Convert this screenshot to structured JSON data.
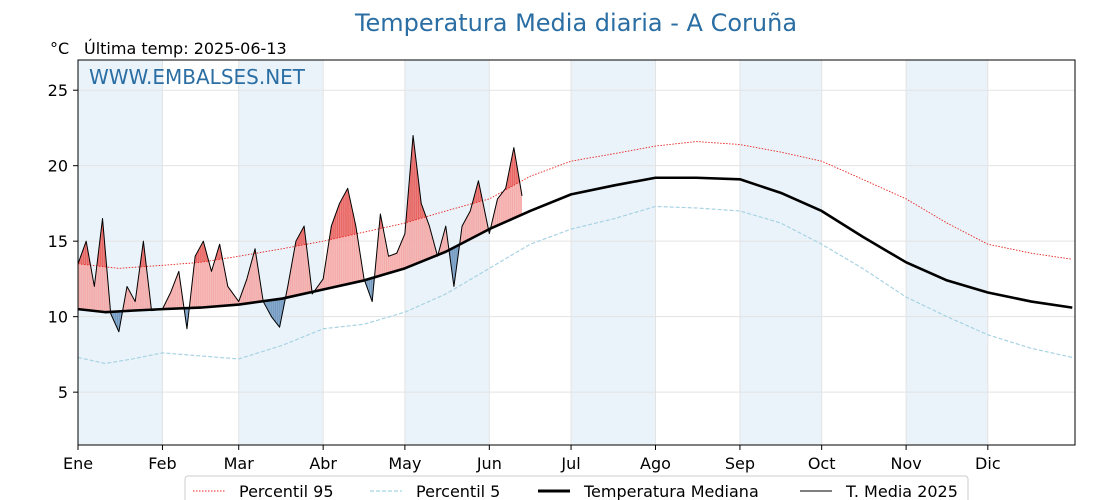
{
  "chart_data": {
    "type": "line",
    "title": "Temperatura Media diaria - A Coruña",
    "unit_label": "°C",
    "subtitle": "Última temp: 2025-06-13",
    "watermark": "WWW.EMBALSES.NET",
    "xlabel": "",
    "ylabel": "",
    "ylim": [
      1.5,
      27
    ],
    "yticks": [
      5,
      10,
      15,
      20,
      25
    ],
    "xlim": [
      0,
      366
    ],
    "month_starts": [
      0,
      31,
      59,
      90,
      120,
      151,
      181,
      212,
      243,
      273,
      304,
      334
    ],
    "month_labels": [
      "Ene",
      "Feb",
      "Mar",
      "Abr",
      "May",
      "Jun",
      "Jul",
      "Ago",
      "Sep",
      "Oct",
      "Nov",
      "Dic"
    ],
    "grid": true,
    "legend_position": "bottom",
    "colors": {
      "p95": "#e8231e",
      "p5": "#a8d3e3",
      "median": "#000000",
      "current": "#000000",
      "above_median_fill": "#f4a9a7",
      "above_p95_fill": "#e8615e",
      "below_median_fill": "#6f97bf",
      "month_band": "#eaf3fa",
      "title": "#2b6ea3"
    },
    "series": [
      {
        "name": "Percentil 95",
        "style": "dotted",
        "x": [
          0,
          15,
          31,
          45,
          59,
          75,
          90,
          105,
          120,
          135,
          151,
          166,
          181,
          197,
          212,
          227,
          243,
          258,
          273,
          288,
          304,
          319,
          334,
          350,
          365
        ],
        "values": [
          13.5,
          13.2,
          13.4,
          13.6,
          14.0,
          14.5,
          15.0,
          15.6,
          16.2,
          17.0,
          17.8,
          19.3,
          20.3,
          20.8,
          21.3,
          21.6,
          21.4,
          20.9,
          20.3,
          19.1,
          17.8,
          16.2,
          14.8,
          14.2,
          13.8
        ]
      },
      {
        "name": "Percentil 5",
        "style": "dashed",
        "x": [
          0,
          10,
          20,
          31,
          45,
          59,
          75,
          90,
          105,
          120,
          135,
          151,
          166,
          181,
          197,
          212,
          227,
          243,
          258,
          273,
          288,
          304,
          319,
          334,
          350,
          365
        ],
        "values": [
          7.3,
          6.9,
          7.2,
          7.6,
          7.4,
          7.2,
          8.1,
          9.2,
          9.5,
          10.3,
          11.5,
          13.2,
          14.8,
          15.8,
          16.5,
          17.3,
          17.2,
          17.0,
          16.2,
          14.8,
          13.2,
          11.3,
          10.0,
          8.8,
          7.9,
          7.3
        ]
      },
      {
        "name": "Temperatura Mediana",
        "style": "solid-thick",
        "x": [
          0,
          10,
          20,
          31,
          45,
          59,
          75,
          90,
          105,
          120,
          135,
          151,
          166,
          181,
          197,
          212,
          227,
          243,
          258,
          273,
          288,
          304,
          319,
          334,
          350,
          365
        ],
        "values": [
          10.5,
          10.3,
          10.4,
          10.5,
          10.6,
          10.8,
          11.2,
          11.8,
          12.4,
          13.2,
          14.3,
          15.8,
          17.0,
          18.1,
          18.7,
          19.2,
          19.2,
          19.1,
          18.2,
          17.0,
          15.3,
          13.6,
          12.4,
          11.6,
          11.0,
          10.6
        ]
      },
      {
        "name": "T. Media 2025",
        "style": "solid-thin",
        "x": [
          0,
          3,
          6,
          9,
          12,
          15,
          18,
          21,
          24,
          27,
          31,
          34,
          37,
          40,
          43,
          46,
          49,
          52,
          55,
          59,
          62,
          65,
          68,
          71,
          74,
          77,
          80,
          83,
          86,
          90,
          93,
          96,
          99,
          102,
          105,
          108,
          111,
          114,
          117,
          120,
          123,
          126,
          129,
          132,
          135,
          138,
          141,
          144,
          147,
          151,
          154,
          157,
          160,
          163
        ],
        "values": [
          13.5,
          15.0,
          12.0,
          16.5,
          10.2,
          9.0,
          12.0,
          11.0,
          15.0,
          10.4,
          10.5,
          11.6,
          13.0,
          9.2,
          14.0,
          15.0,
          13.0,
          14.8,
          12.0,
          11.0,
          12.5,
          14.5,
          11.0,
          10.0,
          9.3,
          12.0,
          15.0,
          16.0,
          11.5,
          12.5,
          16.0,
          17.5,
          18.5,
          16.0,
          12.5,
          11.0,
          16.8,
          14.0,
          14.2,
          15.5,
          22.0,
          17.5,
          16.0,
          14.0,
          16.0,
          12.0,
          16.0,
          17.0,
          19.0,
          15.5,
          17.8,
          18.5,
          21.2,
          18.0
        ]
      }
    ]
  }
}
